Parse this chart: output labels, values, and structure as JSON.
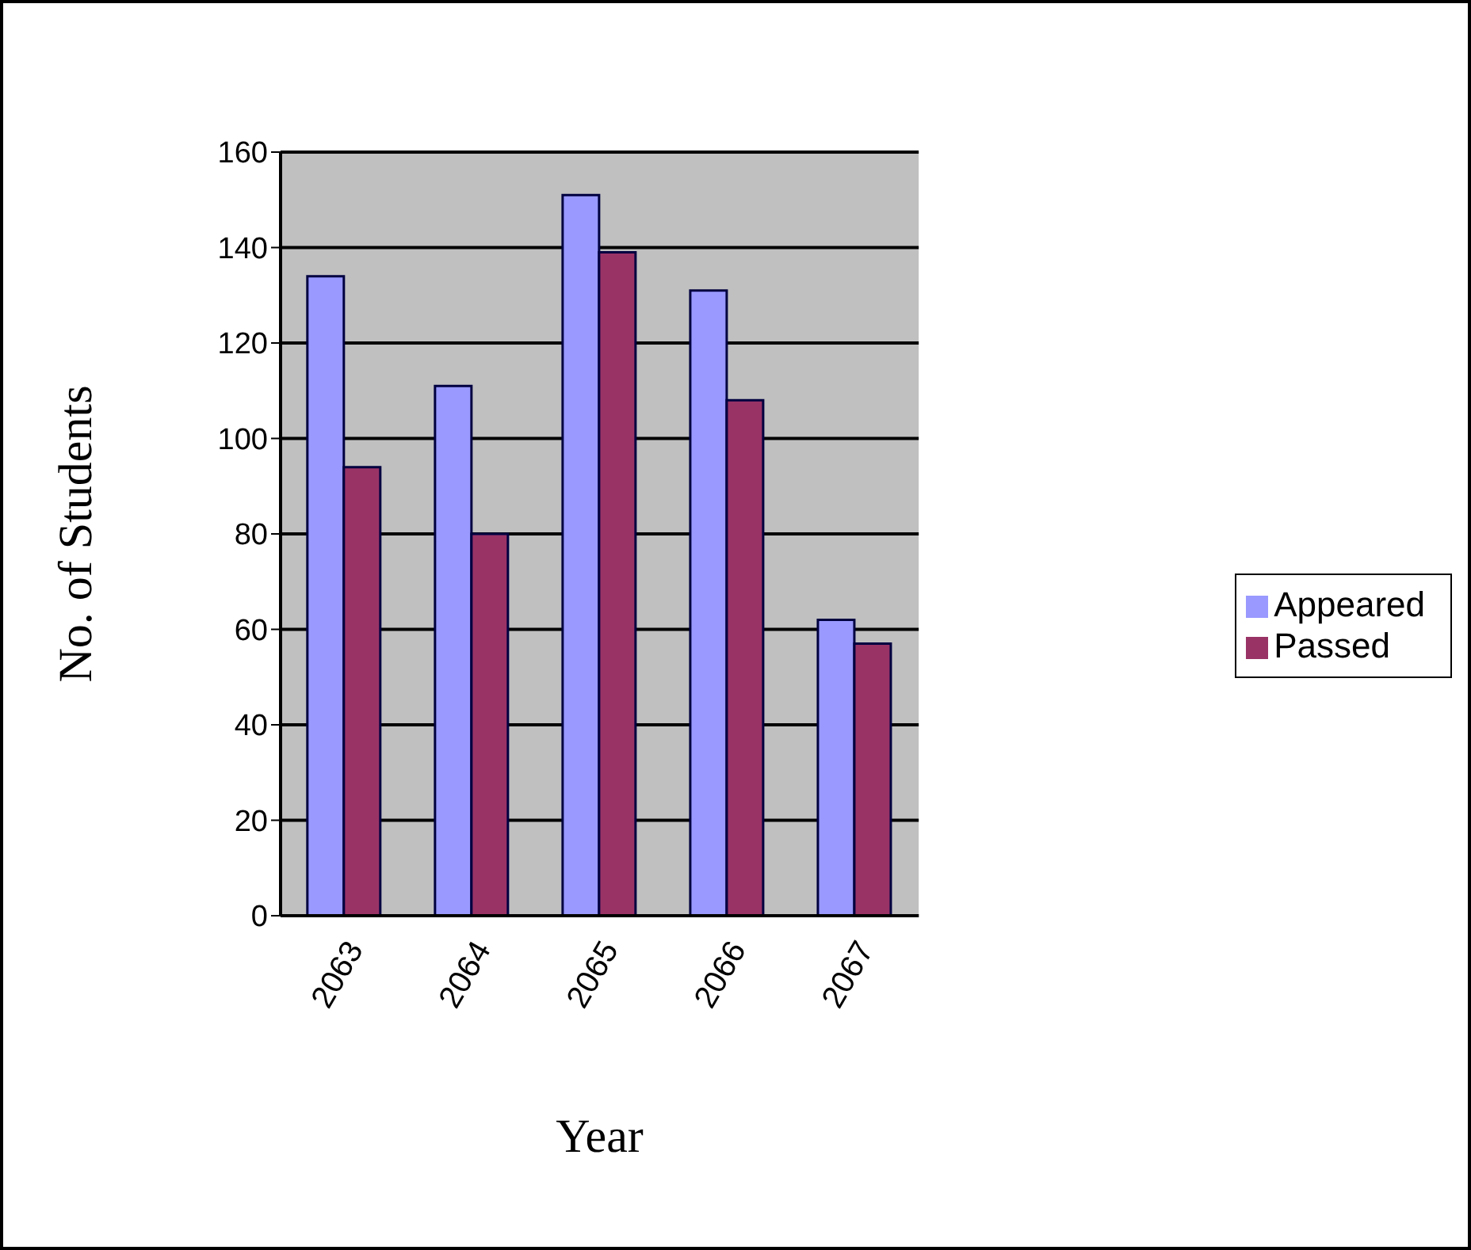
{
  "chart_data": {
    "type": "bar",
    "xlabel": "Year",
    "ylabel": "No. of Students",
    "categories": [
      "2063",
      "2064",
      "2065",
      "2066",
      "2067"
    ],
    "series": [
      {
        "name": "Appeared",
        "color": "#9999ff",
        "values": [
          134,
          111,
          151,
          131,
          62
        ]
      },
      {
        "name": "Passed",
        "color": "#993366",
        "values": [
          94,
          80,
          139,
          108,
          57
        ]
      }
    ],
    "ylim": [
      0,
      160
    ],
    "yticks": [
      0,
      20,
      40,
      60,
      80,
      100,
      120,
      140,
      160
    ],
    "grid": "y",
    "legend": "right"
  }
}
